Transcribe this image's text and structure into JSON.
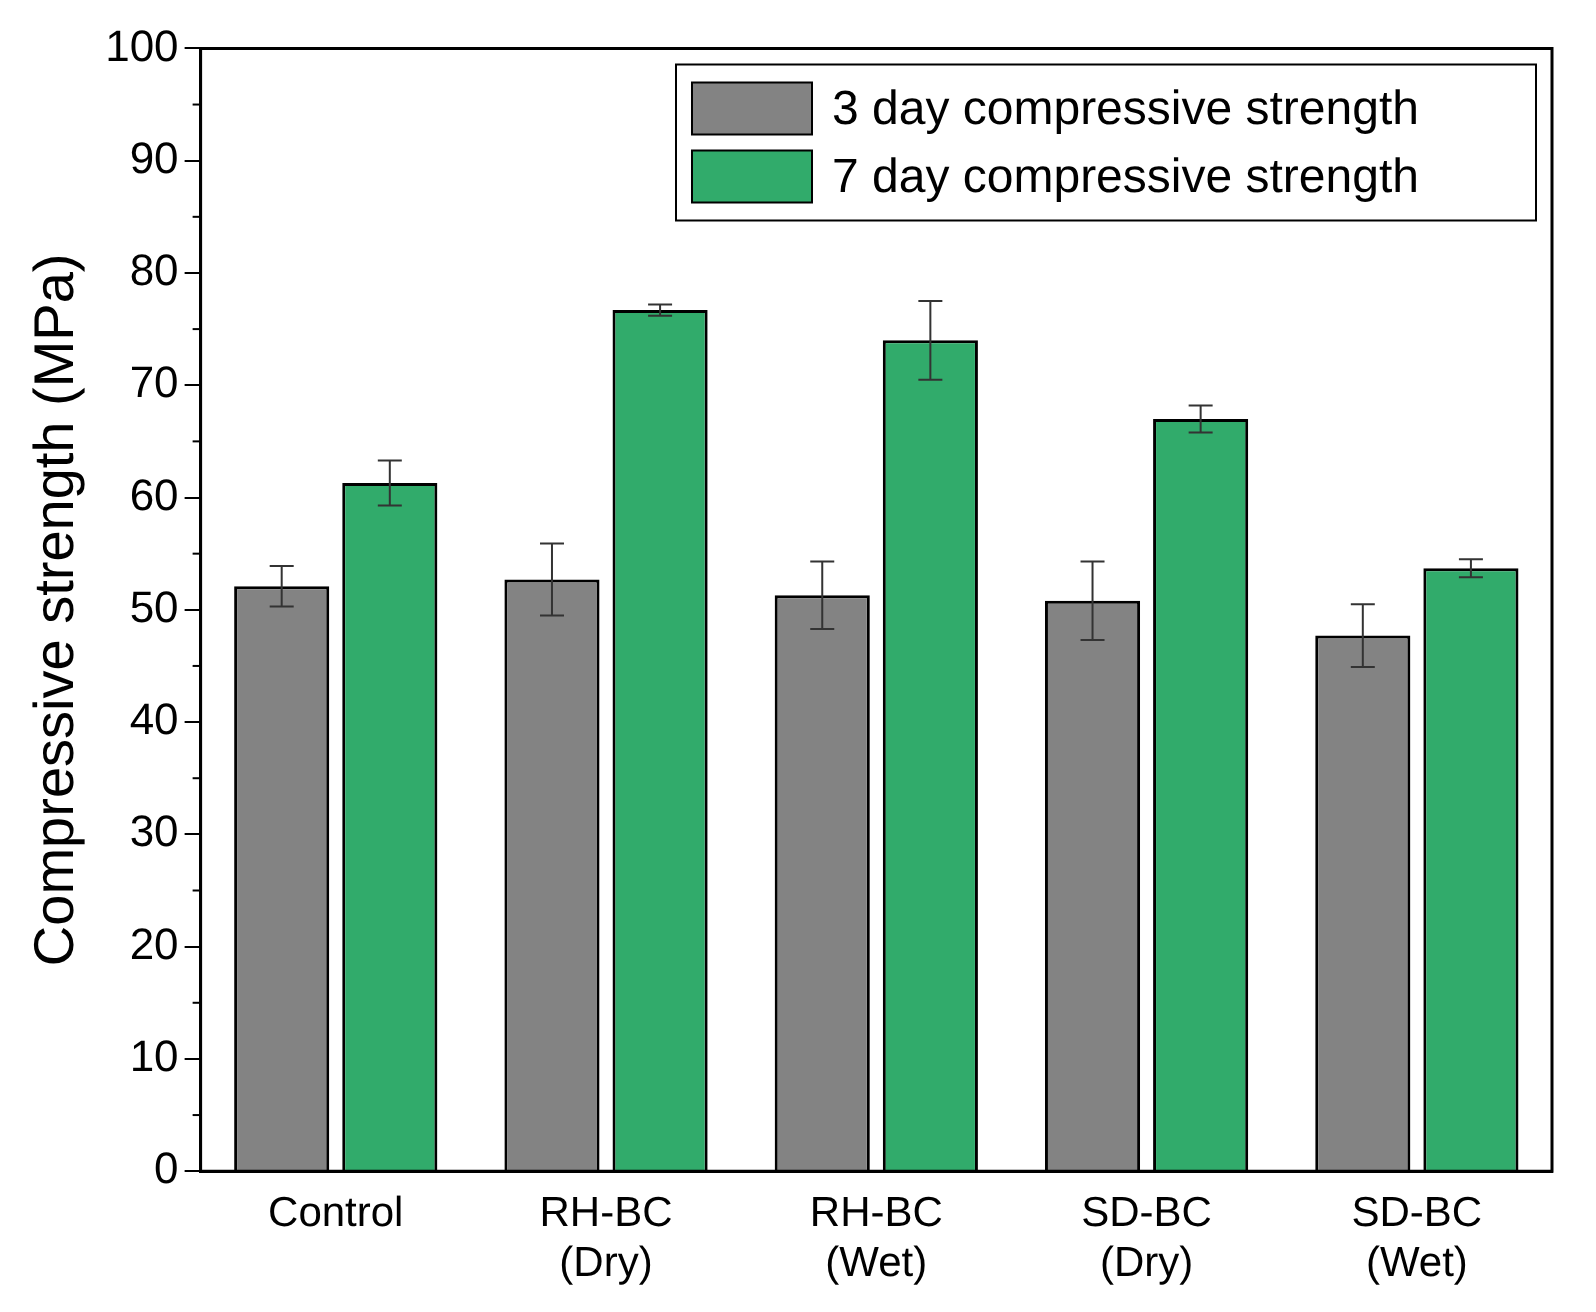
{
  "chart_data": {
    "type": "bar",
    "ylabel": "Compressive strength (MPa)",
    "categories": [
      "Control",
      "RH-BC (Dry)",
      "RH-BC (Wet)",
      "SD-BC (Dry)",
      "SD-BC (Wet)"
    ],
    "series": [
      {
        "name": "3 day compressive strength",
        "color": "#838383",
        "values": [
          52.1,
          52.7,
          51.3,
          50.8,
          47.7
        ],
        "errors": [
          1.8,
          3.2,
          3.0,
          3.5,
          2.8
        ]
      },
      {
        "name": "7 day compressive strength",
        "color": "#31ab6b",
        "values": [
          61.3,
          76.7,
          74.0,
          67.0,
          53.7
        ],
        "errors": [
          2.0,
          0.5,
          3.5,
          1.2,
          0.8
        ]
      }
    ],
    "ylim": [
      0,
      100
    ],
    "yticks": [
      0,
      10,
      20,
      30,
      40,
      50,
      60,
      70,
      80,
      90,
      100
    ],
    "grid": false,
    "legend": "top right"
  }
}
